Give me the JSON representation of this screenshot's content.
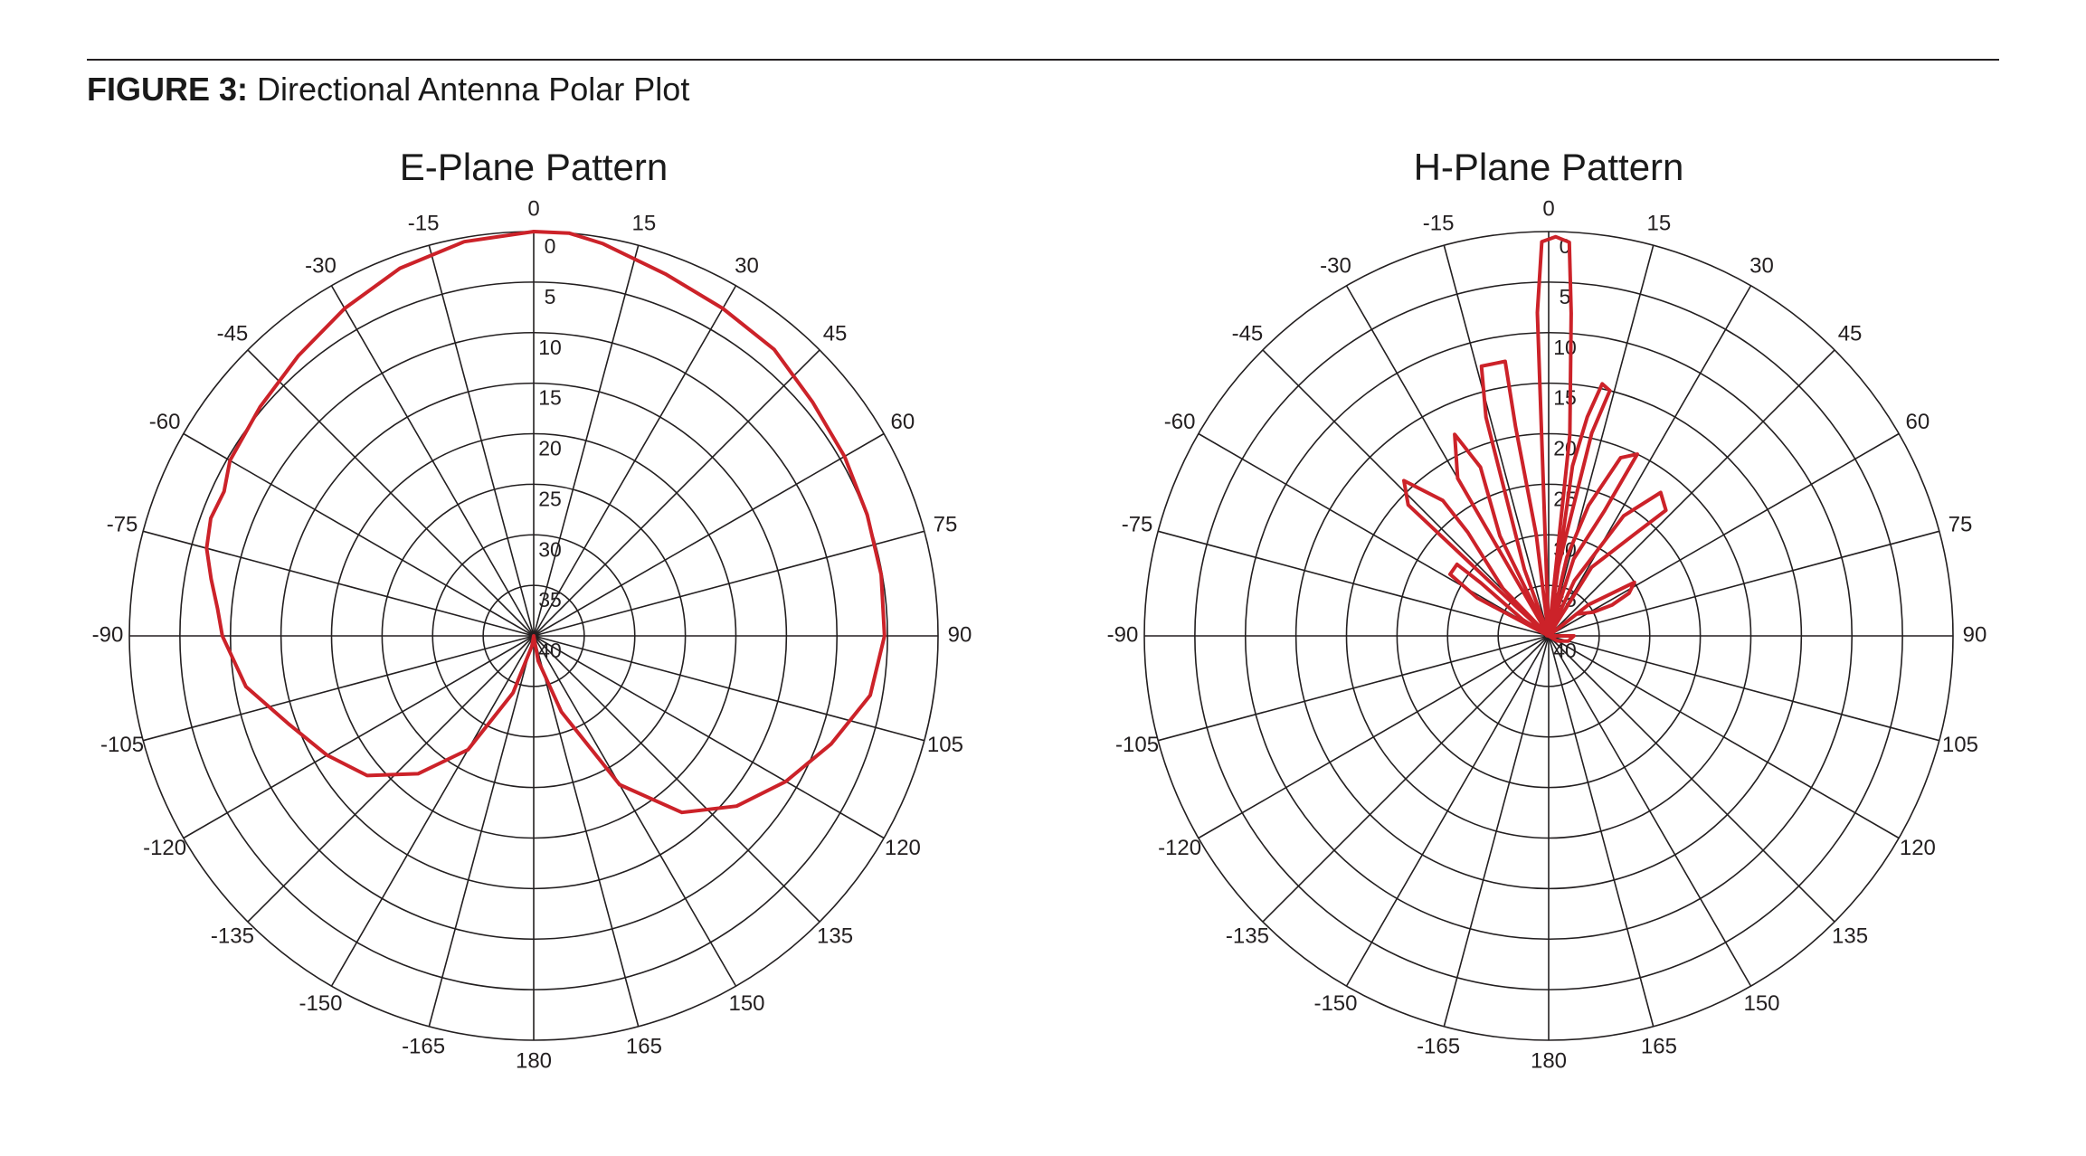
{
  "figure": {
    "label": "FIGURE 3:",
    "text": "Directional Antenna Polar Plot"
  },
  "colors": {
    "grid": "#231f20",
    "pattern": "#cc2229"
  },
  "chart_data": [
    {
      "type": "polar-line",
      "title": "E-Plane Pattern",
      "angular_unit": "degrees",
      "radial_unit": "dB attenuation from center outward reversed (0 at rim, 40 at center)",
      "angle_ticks": [
        "0",
        "15",
        "30",
        "45",
        "60",
        "75",
        "90",
        "105",
        "120",
        "135",
        "150",
        "165",
        "180",
        "-165",
        "-150",
        "-135",
        "-120",
        "-105",
        "-90",
        "-75",
        "-60",
        "-45",
        "-30",
        "-15"
      ],
      "radial_ticks": [
        "0",
        "5",
        "10",
        "15",
        "20",
        "25",
        "30",
        "35",
        "40"
      ],
      "rlim": [
        0,
        40
      ],
      "grid": true,
      "series": [
        {
          "points": [
            [
              -120,
              16.4
            ],
            [
              -110,
              14.3
            ],
            [
              -100,
              11.1
            ],
            [
              -90,
              9.2
            ],
            [
              -85,
              8.6
            ],
            [
              -80,
              7.6
            ],
            [
              -75,
              6.5
            ],
            [
              -70,
              6.0
            ],
            [
              -65,
              6.2
            ],
            [
              -60,
              5.3
            ],
            [
              -50,
              4.7
            ],
            [
              -40,
              3.8
            ],
            [
              -30,
              2.6
            ],
            [
              -20,
              1.3
            ],
            [
              -10,
              0.4
            ],
            [
              0,
              0
            ],
            [
              5,
              0
            ],
            [
              10,
              0.6
            ],
            [
              20,
              1.9
            ],
            [
              30,
              2.6
            ],
            [
              40,
              3.0
            ],
            [
              50,
              4.0
            ],
            [
              60,
              4.5
            ],
            [
              70,
              4.9
            ],
            [
              80,
              5.1
            ],
            [
              90,
              5.3
            ],
            [
              100,
              6.2
            ],
            [
              110,
              8.7
            ],
            [
              120,
              11.2
            ],
            [
              130,
              13.8
            ],
            [
              140,
              17.2
            ],
            [
              150,
              23.0
            ],
            [
              160,
              32.0
            ],
            [
              170,
              37.5
            ],
            [
              180,
              40
            ],
            [
              -170,
              39.0
            ],
            [
              -160,
              34.0
            ],
            [
              -150,
              27.0
            ],
            [
              -140,
              22.2
            ],
            [
              -130,
              18.5
            ],
            [
              -120,
              16.4
            ]
          ]
        }
      ]
    },
    {
      "type": "polar-line",
      "title": "H-Plane Pattern",
      "angular_unit": "degrees",
      "radial_unit": "dB attenuation from center outward reversed (0 at rim, 40 at center)",
      "angle_ticks": [
        "0",
        "15",
        "30",
        "45",
        "60",
        "75",
        "90",
        "105",
        "120",
        "135",
        "150",
        "165",
        "180",
        "-165",
        "-150",
        "-135",
        "-120",
        "-105",
        "-90",
        "-75",
        "-60",
        "-45",
        "-30",
        "-15"
      ],
      "radial_ticks": [
        "0",
        "5",
        "10",
        "15",
        "20",
        "25",
        "30",
        "35",
        "40"
      ],
      "rlim": [
        0,
        40
      ],
      "grid": true,
      "series": [
        {
          "points": [
            [
              -58,
              40
            ],
            [
              -62,
              32.0
            ],
            [
              -58,
              28.5
            ],
            [
              -52,
              28.5
            ],
            [
              -52,
              31.5
            ],
            [
              -58,
              37.0
            ],
            [
              -55,
              40
            ],
            [
              -48,
              36.0
            ],
            [
              -47,
              21.0
            ],
            [
              -43,
              19.0
            ],
            [
              -38,
              23.0
            ],
            [
              -38,
              27.0
            ],
            [
              -44,
              33.5
            ],
            [
              -33,
              40
            ],
            [
              -30,
              33.0
            ],
            [
              -30,
              22.0
            ],
            [
              -25,
              18.0
            ],
            [
              -22,
              22.0
            ],
            [
              -26,
              29.0
            ],
            [
              -23,
              40
            ],
            [
              -20,
              33.0
            ],
            [
              -16,
              17.5
            ],
            [
              -14,
              12.5
            ],
            [
              -9,
              12.5
            ],
            [
              -9,
              19.0
            ],
            [
              -7,
              30.0
            ],
            [
              -3,
              40
            ],
            [
              -2,
              35.0
            ],
            [
              -2,
              8.0
            ],
            [
              -1,
              1.0
            ],
            [
              1,
              0.5
            ],
            [
              3,
              1.0
            ],
            [
              4,
              8.0
            ],
            [
              6,
              20.0
            ],
            [
              6,
              40
            ],
            [
              8,
              23.0
            ],
            [
              10,
              18.0
            ],
            [
              12,
              14.5
            ],
            [
              14,
              15.0
            ],
            [
              12,
              19.5
            ],
            [
              8,
              33.0
            ],
            [
              10,
              40
            ],
            [
              13,
              32.0
            ],
            [
              17,
              26.5
            ],
            [
              22,
              21.0
            ],
            [
              26,
              20.0
            ],
            [
              24,
              26.5
            ],
            [
              18,
              32.0
            ],
            [
              18,
              40
            ],
            [
              25,
              34.0
            ],
            [
              32,
              26.0
            ],
            [
              38,
              22.0
            ],
            [
              43,
              23.0
            ],
            [
              40,
              27.0
            ],
            [
              32,
              32.0
            ],
            [
              35,
              40
            ],
            [
              52,
              35.0
            ],
            [
              58,
              30.0
            ],
            [
              62,
              31.0
            ],
            [
              64,
              33.0
            ],
            [
              62,
              35.0
            ],
            [
              52,
              36.5
            ],
            [
              70,
              40
            ],
            [
              90,
              37.5
            ],
            [
              105,
              38.0
            ],
            [
              120,
              39.0
            ],
            [
              180,
              40
            ],
            [
              -150,
              40
            ],
            [
              -100,
              40
            ],
            [
              -80,
              39.8
            ],
            [
              -70,
              40
            ],
            [
              -58,
              40
            ]
          ]
        }
      ]
    }
  ]
}
